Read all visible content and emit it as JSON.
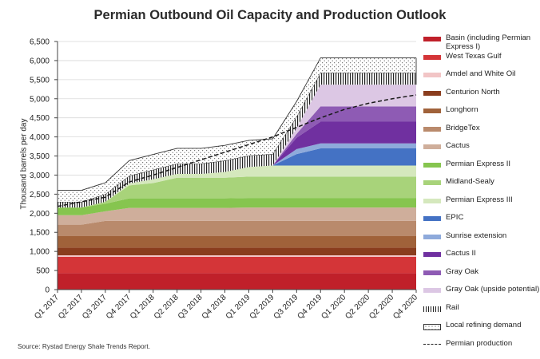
{
  "chart_data": {
    "type": "area",
    "stacked": true,
    "title": "Permian Outbound Oil Capacity and Production Outlook",
    "xlabel": "",
    "ylabel": "Thousand barrels per day",
    "ylim": [
      0,
      6500
    ],
    "yticks": [
      "0",
      "500",
      "1,000",
      "1,500",
      "2,000",
      "2,500",
      "3,000",
      "3,500",
      "4,000",
      "4,500",
      "5,000",
      "5,500",
      "6,000",
      "6,500"
    ],
    "ytick_values": [
      0,
      500,
      1000,
      1500,
      2000,
      2500,
      3000,
      3500,
      4000,
      4500,
      5000,
      5500,
      6000,
      6500
    ],
    "categories": [
      "Q1 2017",
      "Q2 2017",
      "Q3 2017",
      "Q4 2017",
      "Q1 2018",
      "Q2 2018",
      "Q3 2018",
      "Q4 2018",
      "Q1 2019",
      "Q2 2019",
      "Q3 2019",
      "Q4 2019",
      "Q1 2020",
      "Q2 2020",
      "Q2 2020",
      "Q4 2020"
    ],
    "grid": "horizontal",
    "legend_position": "right",
    "series": [
      {
        "name": "Basin (including Permian Express I)",
        "color": "#c0202a",
        "pattern": "solid",
        "values": [
          430,
          430,
          430,
          430,
          430,
          430,
          430,
          430,
          430,
          430,
          430,
          430,
          430,
          430,
          430,
          430
        ]
      },
      {
        "name": "West Texas Gulf",
        "color": "#d43538",
        "pattern": "solid",
        "values": [
          430,
          430,
          430,
          430,
          430,
          430,
          430,
          430,
          430,
          430,
          430,
          430,
          430,
          430,
          430,
          430
        ]
      },
      {
        "name": "Amdel and White Oil",
        "color": "#f2c5c6",
        "pattern": "solid",
        "values": [
          40,
          40,
          40,
          40,
          40,
          40,
          40,
          40,
          40,
          40,
          40,
          40,
          40,
          40,
          40,
          40
        ]
      },
      {
        "name": "Centurion North",
        "color": "#8a3d1e",
        "pattern": "solid",
        "values": [
          200,
          200,
          200,
          200,
          200,
          200,
          200,
          200,
          200,
          200,
          200,
          200,
          200,
          200,
          200,
          200
        ]
      },
      {
        "name": "Longhorn",
        "color": "#a0623a",
        "pattern": "solid",
        "values": [
          300,
          300,
          300,
          300,
          300,
          300,
          300,
          300,
          300,
          300,
          300,
          300,
          300,
          300,
          300,
          300
        ]
      },
      {
        "name": "BridgeTex",
        "color": "#b98a6c",
        "pattern": "solid",
        "values": [
          300,
          300,
          400,
          400,
          400,
          400,
          400,
          400,
          400,
          400,
          400,
          400,
          400,
          400,
          400,
          400
        ]
      },
      {
        "name": "Cactus",
        "color": "#cfae9b",
        "pattern": "solid",
        "values": [
          250,
          250,
          250,
          340,
          340,
          340,
          340,
          340,
          350,
          350,
          350,
          350,
          350,
          350,
          350,
          350
        ]
      },
      {
        "name": "Permian Express II",
        "color": "#86c54f",
        "pattern": "solid",
        "values": [
          200,
          200,
          200,
          250,
          250,
          250,
          250,
          250,
          250,
          250,
          250,
          250,
          250,
          250,
          250,
          250
        ]
      },
      {
        "name": "Midland-Sealy",
        "color": "#a8d37a",
        "pattern": "solid",
        "values": [
          0,
          0,
          50,
          340,
          400,
          540,
          540,
          540,
          560,
          560,
          560,
          560,
          560,
          560,
          560,
          560
        ]
      },
      {
        "name": "Permian Express III",
        "color": "#d5e8bd",
        "pattern": "solid",
        "values": [
          0,
          0,
          0,
          50,
          100,
          100,
          100,
          150,
          250,
          290,
          290,
          290,
          290,
          290,
          290,
          290
        ]
      },
      {
        "name": "EPIC",
        "color": "#4472c4",
        "pattern": "solid",
        "values": [
          0,
          0,
          0,
          0,
          0,
          0,
          0,
          0,
          0,
          0,
          300,
          450,
          450,
          450,
          450,
          450
        ]
      },
      {
        "name": "Sunrise extension",
        "color": "#8eaadb",
        "pattern": "solid",
        "values": [
          0,
          0,
          0,
          0,
          0,
          0,
          0,
          0,
          0,
          0,
          130,
          130,
          130,
          130,
          130,
          130
        ]
      },
      {
        "name": "Cactus II",
        "color": "#7030a0",
        "pattern": "solid",
        "values": [
          0,
          0,
          0,
          0,
          0,
          0,
          0,
          0,
          0,
          0,
          300,
          570,
          570,
          570,
          570,
          570
        ]
      },
      {
        "name": "Gray Oak",
        "color": "#8e5bb4",
        "pattern": "solid",
        "values": [
          0,
          0,
          0,
          0,
          0,
          0,
          0,
          0,
          0,
          0,
          100,
          400,
          400,
          400,
          400,
          400
        ]
      },
      {
        "name": "Gray Oak (upside potential)",
        "color": "#dcc7e4",
        "pattern": "solid",
        "values": [
          0,
          0,
          0,
          0,
          0,
          0,
          0,
          0,
          0,
          0,
          150,
          570,
          570,
          570,
          570,
          570
        ]
      },
      {
        "name": "Rail",
        "color": "#ffffff",
        "pattern": "vertical-hatch",
        "values": [
          150,
          150,
          200,
          200,
          250,
          270,
          270,
          300,
          300,
          300,
          300,
          310,
          310,
          310,
          310,
          310
        ]
      },
      {
        "name": "Local refining demand",
        "color": "#ffffff",
        "pattern": "dots",
        "values": [
          300,
          300,
          300,
          400,
          400,
          400,
          400,
          400,
          400,
          400,
          400,
          390,
          390,
          390,
          390,
          390
        ]
      }
    ],
    "line_series": [
      {
        "name": "Permian production",
        "style": "dashed",
        "color": "#1a1a1a",
        "values": [
          2180,
          2300,
          2420,
          2820,
          3000,
          3200,
          3400,
          3600,
          3800,
          4000,
          4250,
          4500,
          4720,
          4880,
          5000,
          5100
        ]
      }
    ],
    "source": "Source: Rystad Energy Shale Trends Report."
  }
}
